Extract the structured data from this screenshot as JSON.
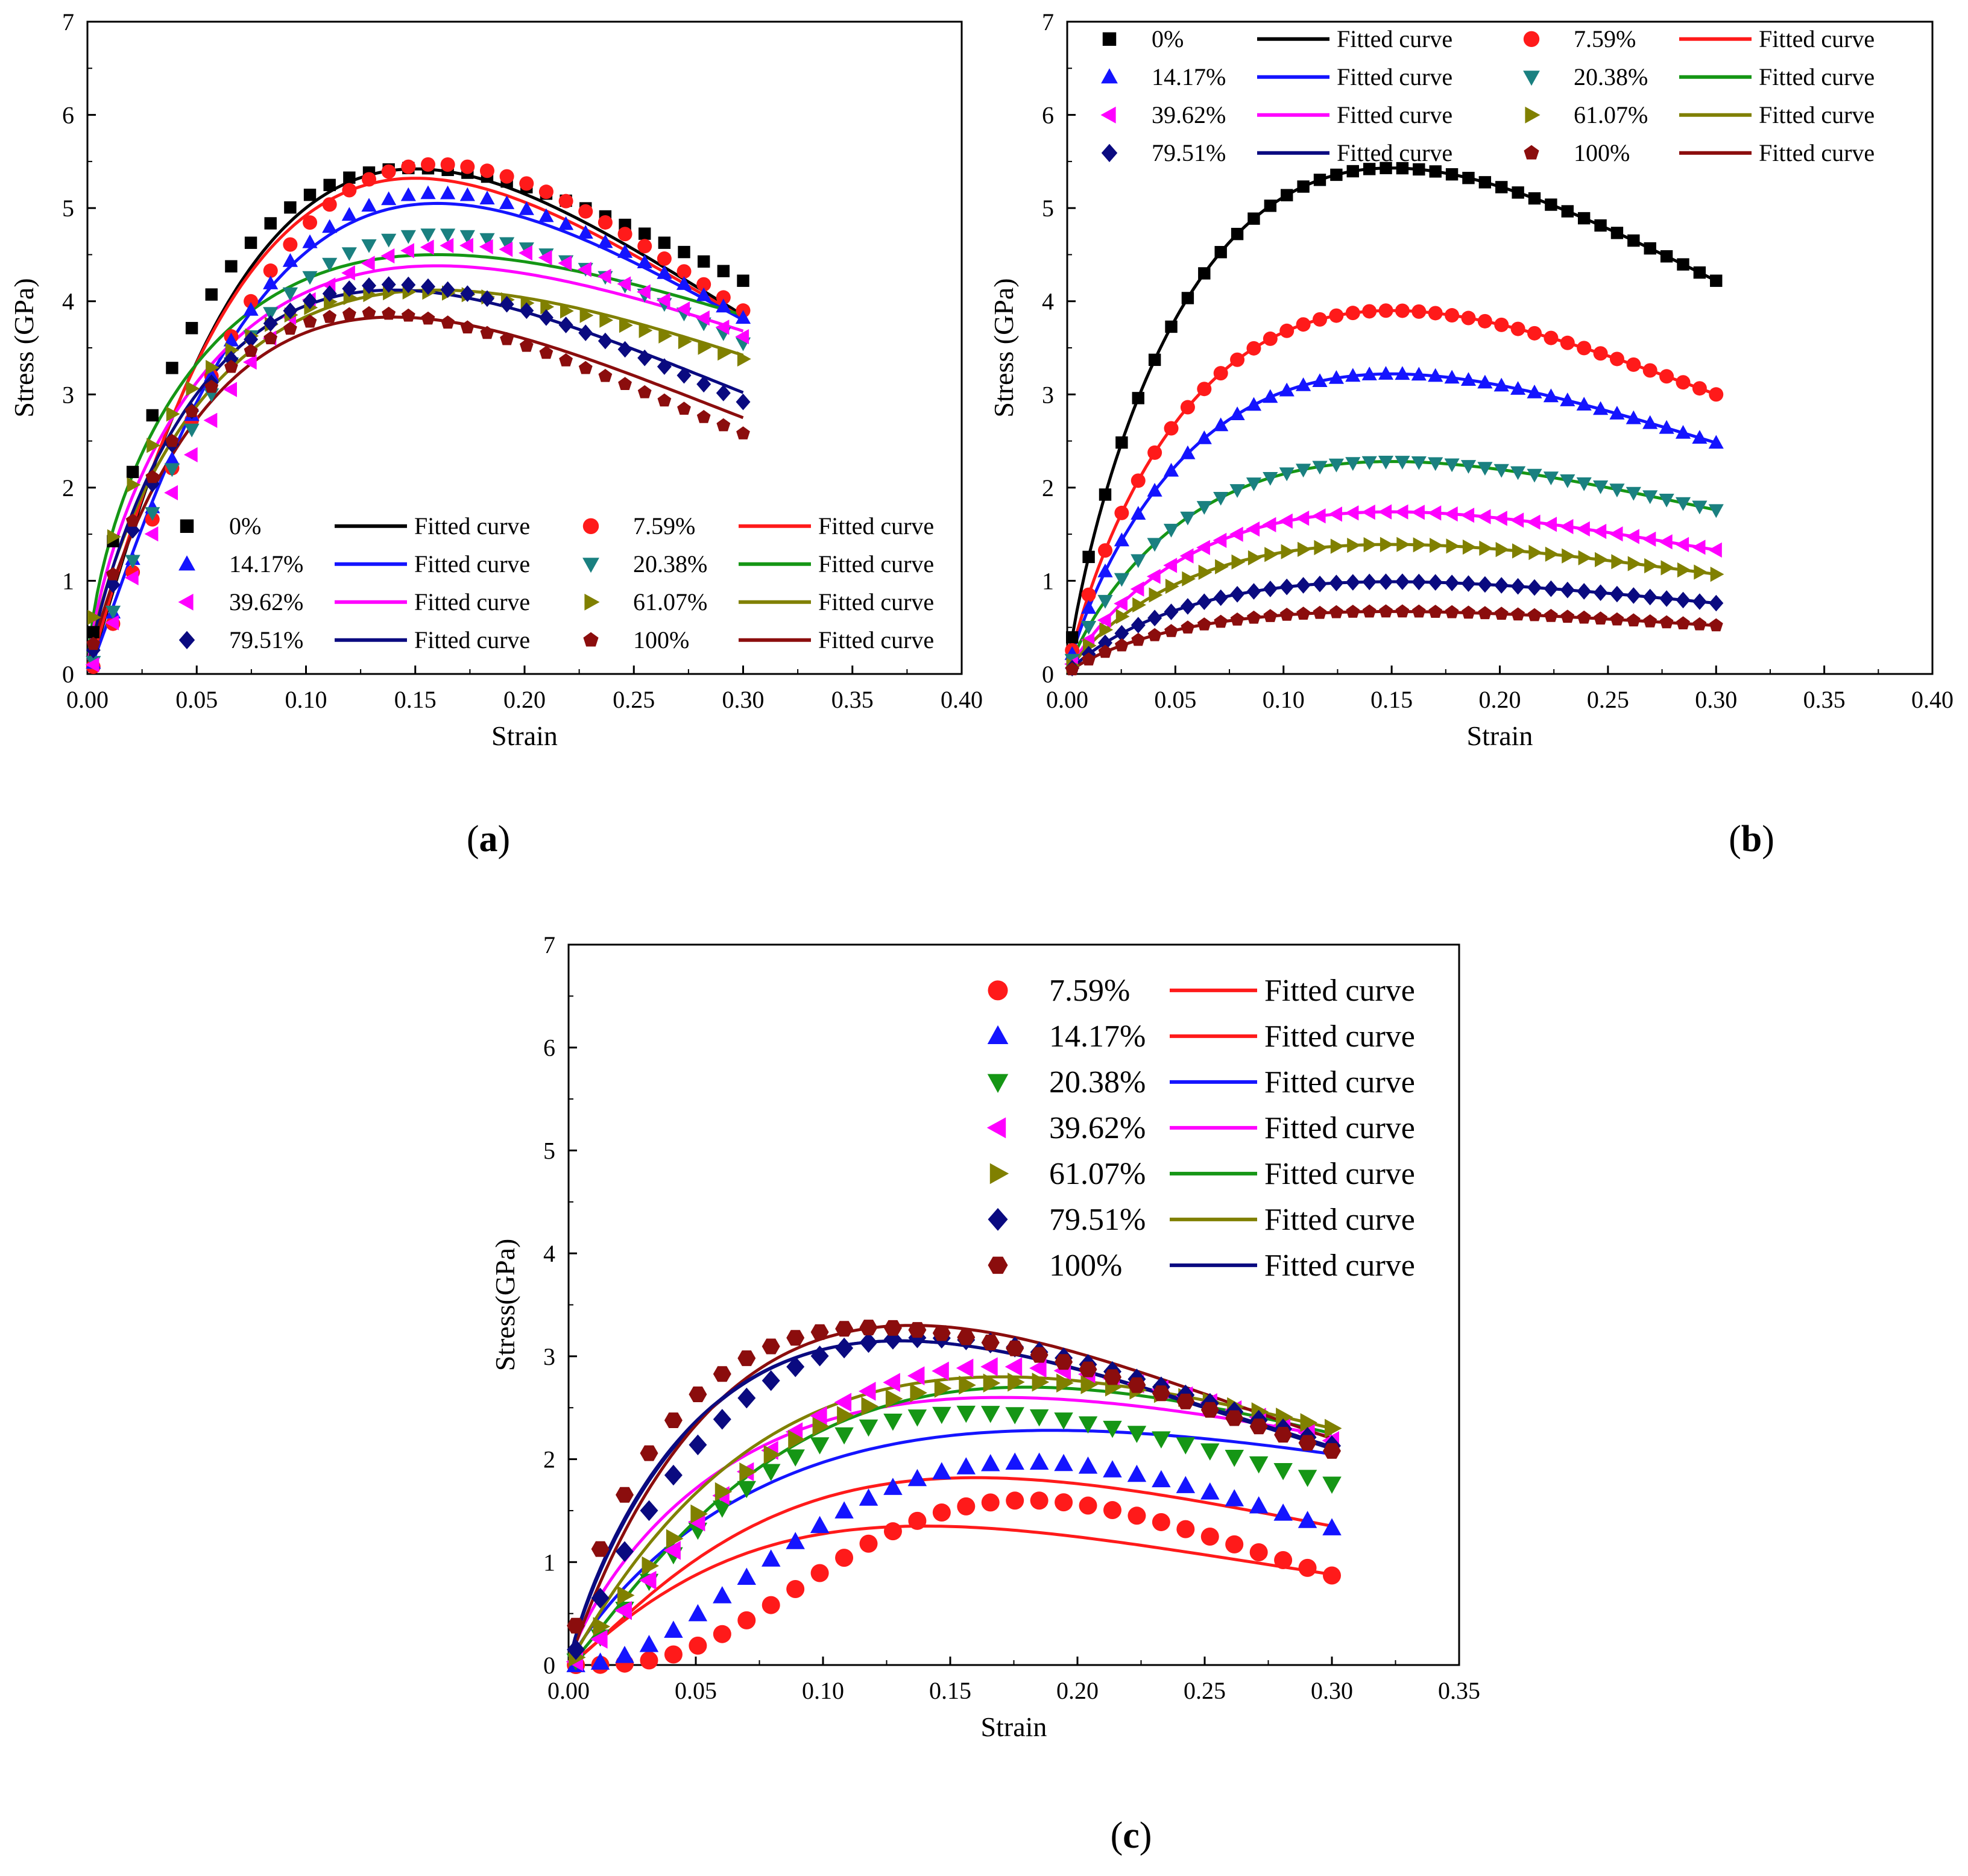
{
  "colors": {
    "black": "#000000",
    "red": "#ff1a1a",
    "blue": "#1414ff",
    "teal": "#1a8080",
    "green": "#159615",
    "magenta": "#ff00ff",
    "olive": "#808000",
    "navy": "#0a0a80",
    "maroon": "#8b0d0d"
  },
  "panels": [
    {
      "label_open": "(",
      "label_letter": "a",
      "label_close": ")"
    },
    {
      "label_open": "(",
      "label_letter": "b",
      "label_close": ")"
    },
    {
      "label_open": "(",
      "label_letter": "c",
      "label_close": ")"
    }
  ],
  "chart_data": [
    {
      "type": "scatter",
      "panel": "a",
      "xlabel": "Strain",
      "ylabel": "Stress (GPa)",
      "xlim": [
        0,
        0.4
      ],
      "ylim": [
        0,
        7
      ],
      "xticks": [
        "0.00",
        "0.05",
        "0.10",
        "0.15",
        "0.20",
        "0.25",
        "0.30",
        "0.35",
        "0.40"
      ],
      "yticks": [
        "0",
        "1",
        "2",
        "3",
        "4",
        "5",
        "6",
        "7"
      ],
      "grid": false,
      "legend": "bottom, 2 columns",
      "series": [
        {
          "name": "0%",
          "marker": "square",
          "color": "#000000",
          "points_peak": [
            0.15,
            5.43
          ],
          "end": [
            0.3,
            4.22
          ],
          "fit_label": "Fitted curve",
          "fit_color": "#000000",
          "fit_peak": [
            0.15,
            5.42
          ],
          "fit_end": [
            0.3,
            3.85
          ]
        },
        {
          "name": "7.59%",
          "marker": "circle",
          "color": "#ff1a1a",
          "points_peak": [
            0.16,
            5.47
          ],
          "end": [
            0.3,
            3.9
          ],
          "fit_label": "Fitted curve",
          "fit_color": "#ff1a1a",
          "fit_peak": [
            0.15,
            5.32
          ],
          "fit_end": [
            0.3,
            3.82
          ]
        },
        {
          "name": "14.17%",
          "marker": "triangle-up",
          "color": "#1414ff",
          "points_peak": [
            0.16,
            5.16
          ],
          "end": [
            0.3,
            3.82
          ],
          "fit_label": "Fitted curve",
          "fit_color": "#1414ff",
          "fit_peak": [
            0.16,
            5.05
          ],
          "fit_end": [
            0.3,
            3.8
          ]
        },
        {
          "name": "20.38%",
          "marker": "triangle-down",
          "color": "#1a8080",
          "points_peak": [
            0.16,
            4.72
          ],
          "end": [
            0.3,
            3.55
          ],
          "fit_label": "Fitted curve",
          "fit_color": "#159615",
          "fit_peak": [
            0.16,
            4.5
          ],
          "fit_end": [
            0.3,
            3.85
          ]
        },
        {
          "name": "39.62%",
          "marker": "triangle-left",
          "color": "#ff00ff",
          "points_peak": [
            0.17,
            4.6
          ],
          "end": [
            0.3,
            3.62
          ],
          "fit_label": "Fitted curve",
          "fit_color": "#ff00ff",
          "fit_peak": [
            0.16,
            4.38
          ],
          "fit_end": [
            0.3,
            3.68
          ]
        },
        {
          "name": "61.07%",
          "marker": "triangle-right",
          "color": "#808000",
          "points_peak": [
            0.15,
            4.1
          ],
          "end": [
            0.3,
            3.38
          ],
          "fit_label": "Fitted curve",
          "fit_color": "#808000",
          "fit_peak": [
            0.16,
            4.12
          ],
          "fit_end": [
            0.3,
            3.42
          ]
        },
        {
          "name": "79.51%",
          "marker": "diamond",
          "color": "#0a0a80",
          "points_peak": [
            0.14,
            4.18
          ],
          "end": [
            0.3,
            2.92
          ],
          "fit_label": "Fitted curve",
          "fit_color": "#0a0a80",
          "fit_peak": [
            0.14,
            4.12
          ],
          "fit_end": [
            0.3,
            3.02
          ]
        },
        {
          "name": "100%",
          "marker": "pentagon",
          "color": "#8b0d0d",
          "points_peak": [
            0.13,
            3.87
          ],
          "end": [
            0.3,
            2.58
          ],
          "fit_label": "Fitted curve",
          "fit_color": "#8b0d0d",
          "fit_peak": [
            0.14,
            3.83
          ],
          "fit_end": [
            0.3,
            2.75
          ]
        }
      ]
    },
    {
      "type": "scatter",
      "panel": "b",
      "xlabel": "Strain",
      "ylabel": "Stress (GPa)",
      "xlim": [
        0,
        0.4
      ],
      "ylim": [
        0,
        7
      ],
      "xticks": [
        "0.00",
        "0.05",
        "0.10",
        "0.15",
        "0.20",
        "0.25",
        "0.30",
        "0.35",
        "0.40"
      ],
      "yticks": [
        "0",
        "1",
        "2",
        "3",
        "4",
        "5",
        "6",
        "7"
      ],
      "grid": false,
      "legend": "top, 2 columns",
      "series": [
        {
          "name": "0%",
          "marker": "square",
          "color": "#000000",
          "points_peak": [
            0.15,
            5.43
          ],
          "end": [
            0.3,
            4.22
          ],
          "fit_label": "Fitted curve",
          "fit_color": "#000000",
          "fit_peak": [
            0.15,
            5.43
          ],
          "fit_end": [
            0.3,
            4.22
          ]
        },
        {
          "name": "7.59%",
          "marker": "circle",
          "color": "#ff1a1a",
          "points_peak": [
            0.15,
            3.9
          ],
          "end": [
            0.3,
            3.0
          ],
          "fit_label": "Fitted curve",
          "fit_color": "#ff1a1a",
          "fit_peak": [
            0.15,
            3.9
          ],
          "fit_end": [
            0.3,
            3.0
          ]
        },
        {
          "name": "14.17%",
          "marker": "triangle-up",
          "color": "#1414ff",
          "points_peak": [
            0.15,
            3.22
          ],
          "end": [
            0.3,
            2.48
          ],
          "fit_label": "Fitted curve",
          "fit_color": "#1414ff",
          "fit_peak": [
            0.15,
            3.22
          ],
          "fit_end": [
            0.3,
            2.48
          ]
        },
        {
          "name": "20.38%",
          "marker": "triangle-down",
          "color": "#1a8080",
          "points_peak": [
            0.15,
            2.28
          ],
          "end": [
            0.3,
            1.76
          ],
          "fit_label": "Fitted curve",
          "fit_color": "#159615",
          "fit_peak": [
            0.15,
            2.28
          ],
          "fit_end": [
            0.3,
            1.76
          ]
        },
        {
          "name": "39.62%",
          "marker": "triangle-left",
          "color": "#ff00ff",
          "points_peak": [
            0.15,
            1.74
          ],
          "end": [
            0.3,
            1.33
          ],
          "fit_label": "Fitted curve",
          "fit_color": "#ff00ff",
          "fit_peak": [
            0.15,
            1.74
          ],
          "fit_end": [
            0.3,
            1.33
          ]
        },
        {
          "name": "61.07%",
          "marker": "triangle-right",
          "color": "#808000",
          "points_peak": [
            0.15,
            1.39
          ],
          "end": [
            0.3,
            1.07
          ],
          "fit_label": "Fitted curve",
          "fit_color": "#808000",
          "fit_peak": [
            0.15,
            1.39
          ],
          "fit_end": [
            0.3,
            1.07
          ]
        },
        {
          "name": "79.51%",
          "marker": "diamond",
          "color": "#0a0a80",
          "points_peak": [
            0.15,
            0.99
          ],
          "end": [
            0.3,
            0.76
          ],
          "fit_label": "Fitted curve",
          "fit_color": "#0a0a80",
          "fit_peak": [
            0.15,
            0.99
          ],
          "fit_end": [
            0.3,
            0.76
          ]
        },
        {
          "name": "100%",
          "marker": "pentagon",
          "color": "#8b0d0d",
          "points_peak": [
            0.15,
            0.67
          ],
          "end": [
            0.3,
            0.52
          ],
          "fit_label": "Fitted curve",
          "fit_color": "#8b0d0d",
          "fit_peak": [
            0.15,
            0.67
          ],
          "fit_end": [
            0.3,
            0.52
          ]
        }
      ]
    },
    {
      "type": "scatter",
      "panel": "c",
      "xlabel": "Strain",
      "ylabel": "Stress(GPa)",
      "xlim": [
        0,
        0.35
      ],
      "ylim": [
        0,
        7
      ],
      "xticks": [
        "0.00",
        "0.05",
        "0.10",
        "0.15",
        "0.20",
        "0.25",
        "0.30",
        "0.35"
      ],
      "yticks": [
        "0",
        "1",
        "2",
        "3",
        "4",
        "5",
        "6",
        "7"
      ],
      "grid": false,
      "legend": "top-right, 1 column",
      "series": [
        {
          "name": "7.59%",
          "marker": "circle",
          "color": "#ff1a1a",
          "points_peak": [
            0.18,
            1.6
          ],
          "end": [
            0.3,
            0.87
          ],
          "fit_label": "Fitted curve",
          "fit_color": "#ff1a1a",
          "fit_peak": [
            0.14,
            1.35
          ],
          "fit_end": [
            0.3,
            0.88
          ]
        },
        {
          "name": "14.17%",
          "marker": "triangle-up",
          "color": "#1414ff",
          "points_peak": [
            0.18,
            1.97
          ],
          "end": [
            0.3,
            1.33
          ],
          "fit_label": "Fitted curve",
          "fit_color": "#ff1a1a",
          "fit_peak": [
            0.16,
            1.82
          ],
          "fit_end": [
            0.3,
            1.35
          ]
        },
        {
          "name": "20.38%",
          "marker": "triangle-down",
          "color": "#159615",
          "points_peak": [
            0.16,
            2.45
          ],
          "end": [
            0.3,
            1.76
          ],
          "fit_label": "Fitted curve",
          "fit_color": "#1414ff",
          "fit_peak": [
            0.19,
            2.28
          ],
          "fit_end": [
            0.3,
            2.05
          ]
        },
        {
          "name": "39.62%",
          "marker": "triangle-left",
          "color": "#ff00ff",
          "points_peak": [
            0.17,
            2.9
          ],
          "end": [
            0.3,
            2.18
          ],
          "fit_label": "Fitted curve",
          "fit_color": "#ff00ff",
          "fit_peak": [
            0.17,
            2.6
          ],
          "fit_end": [
            0.3,
            2.22
          ]
        },
        {
          "name": "61.07%",
          "marker": "triangle-right",
          "color": "#808000",
          "points_peak": [
            0.18,
            2.75
          ],
          "end": [
            0.3,
            2.3
          ],
          "fit_label": "Fitted curve",
          "fit_color": "#159615",
          "fit_peak": [
            0.18,
            2.7
          ],
          "fit_end": [
            0.3,
            2.25
          ]
        },
        {
          "name": "79.51%",
          "marker": "diamond",
          "color": "#0a0a80",
          "points_peak": [
            0.14,
            3.18
          ],
          "end": [
            0.3,
            2.13
          ],
          "fit_label": "Fitted curve",
          "fit_color": "#808000",
          "fit_peak": [
            0.17,
            2.8
          ],
          "fit_end": [
            0.3,
            2.3
          ]
        },
        {
          "name": "100%",
          "marker": "hexagon",
          "color": "#8b0d0d",
          "points_peak": [
            0.12,
            3.28
          ],
          "end": [
            0.3,
            2.08
          ],
          "fit_label": "Fitted curve",
          "fit_color": "#0a0a80",
          "fit_peak": [
            0.13,
            3.15
          ],
          "fit_end": [
            0.3,
            2.1
          ]
        }
      ],
      "extra_fits": [
        {
          "color": "#8b0d0d",
          "peak": [
            0.135,
            3.3
          ],
          "end": [
            0.3,
            2.2
          ]
        },
        {
          "color": "#0a0a80",
          "peak": [
            0.13,
            3.15
          ],
          "end": [
            0.3,
            2.12
          ]
        }
      ]
    }
  ]
}
